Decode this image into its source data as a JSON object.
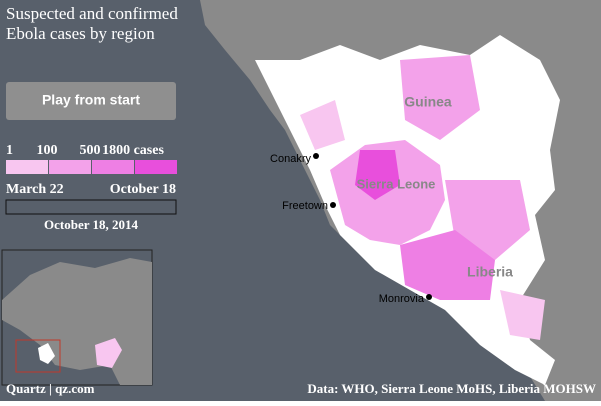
{
  "title": {
    "lines": [
      "Suspected and confirmed",
      "Ebola cases by region"
    ]
  },
  "button": {
    "label": "Play from start"
  },
  "legend": {
    "labels": [
      "1",
      "100",
      "500",
      "1800 cases"
    ],
    "colors": [
      "#f8c6f0",
      "#f3a2ea",
      "#ee7fe4",
      "#e84fdc"
    ]
  },
  "slider": {
    "start": "March 22",
    "end": "October 18",
    "current": "October 18, 2014"
  },
  "map": {
    "countries": [
      "Guinea",
      "Sierra Leone",
      "Liberia"
    ],
    "cities": [
      "Conakry",
      "Freetown",
      "Monrovia"
    ]
  },
  "footer": {
    "credit": "Quartz | qz.com",
    "source": "Data: WHO, Sierra Leone MoHS, Liberia MOHSW"
  }
}
